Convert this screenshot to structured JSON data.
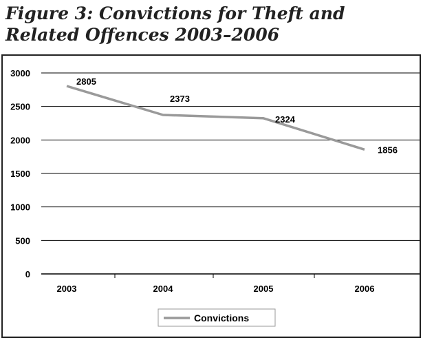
{
  "title": "Figure 3: Convictions for Theft and Related Offences 2003–2006",
  "chart_data": {
    "type": "line",
    "title": "Figure 3: Convictions for Theft and Related Offences 2003–2006",
    "x": [
      "2003",
      "2004",
      "2005",
      "2006"
    ],
    "series": [
      {
        "name": "Convictions",
        "values": [
          2805,
          2373,
          2324,
          1856
        ]
      }
    ],
    "data_labels": [
      "2805",
      "2373",
      "2324",
      "1856"
    ],
    "ylim": [
      0,
      3000
    ],
    "yticks": [
      0,
      500,
      1000,
      1500,
      2000,
      2500,
      3000
    ],
    "ytick_labels": [
      "0",
      "500",
      "1000",
      "1500",
      "2000",
      "2500",
      "3000"
    ],
    "xlabel": "",
    "ylabel": "",
    "grid": true,
    "legend_position": "bottom-center",
    "line_color": "#9a9a9a"
  }
}
